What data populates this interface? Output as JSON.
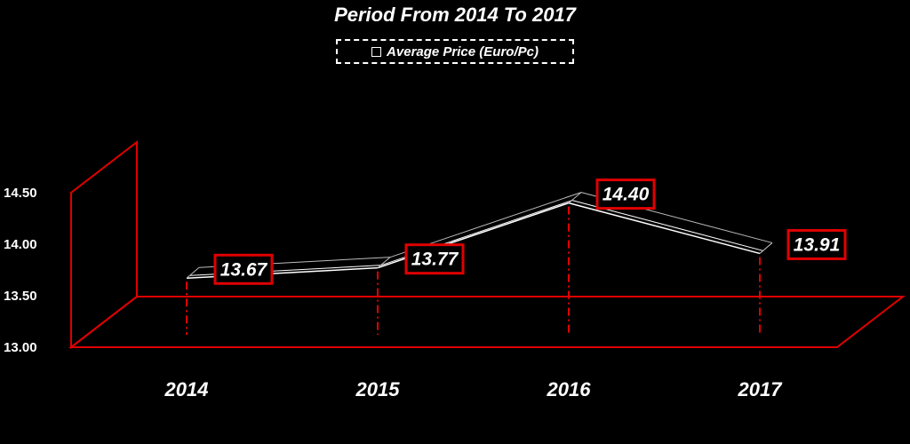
{
  "chart_data": {
    "type": "line",
    "title": "Period From 2014 To 2017",
    "categories": [
      "2014",
      "2015",
      "2016",
      "2017"
    ],
    "series": [
      {
        "name": "Average Price (Euro/Pc)",
        "values": [
          13.67,
          13.77,
          14.4,
          13.91
        ]
      }
    ],
    "data_labels": [
      "13.67",
      "13.77",
      "14.40",
      "13.91"
    ],
    "y_ticks": [
      "13.00",
      "13.50",
      "14.00",
      "14.50"
    ],
    "ylim": [
      13.0,
      14.5
    ],
    "xlabel": "",
    "ylabel": "",
    "grid": false,
    "legend_position": "top",
    "style": "3d-line",
    "colors": {
      "background": "#000000",
      "accent": "#e00000",
      "line": "#ffffff",
      "text": "#ffffff"
    }
  }
}
